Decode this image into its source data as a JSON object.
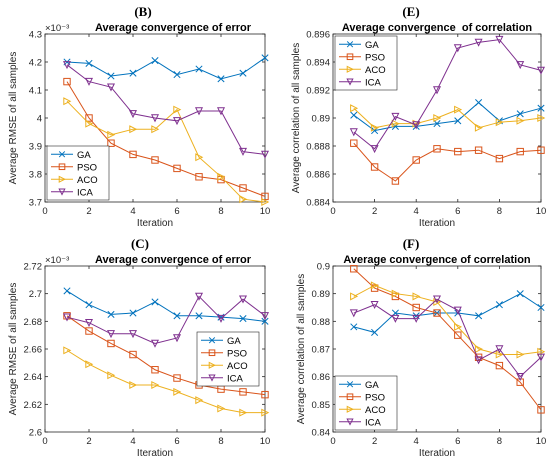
{
  "panel_letters": [
    "(B)",
    "(E)",
    "(C)",
    "(F)"
  ],
  "chart_data": [
    {
      "type": "line",
      "panel": "(B)",
      "title": "Average convergence of error",
      "xlabel": "Iteration",
      "ylabel": "Average RMSE of all samples",
      "exponent_label": "×10⁻³",
      "x": [
        1,
        2,
        3,
        4,
        5,
        6,
        7,
        8,
        9,
        10
      ],
      "xlim": [
        0,
        10
      ],
      "ylim": [
        3.7,
        4.3
      ],
      "xticks": [
        0,
        2,
        4,
        6,
        8,
        10
      ],
      "yticks": [
        3.7,
        3.8,
        3.9,
        4.0,
        4.1,
        4.2,
        4.3
      ],
      "ytick_labels": [
        "3.7",
        "3.8",
        "3.9",
        "4",
        "4.1",
        "4.2",
        "4.3"
      ],
      "legend_position": "bottom-left",
      "series": [
        {
          "name": "GA",
          "color": "#0072BD",
          "marker": "x",
          "values": [
            4.2,
            4.195,
            4.15,
            4.16,
            4.205,
            4.155,
            4.175,
            4.14,
            4.16,
            4.215
          ]
        },
        {
          "name": "PSO",
          "color": "#D95319",
          "marker": "square",
          "values": [
            4.13,
            4.0,
            3.91,
            3.87,
            3.85,
            3.82,
            3.79,
            3.78,
            3.75,
            3.72
          ]
        },
        {
          "name": "ACO",
          "color": "#EDB120",
          "marker": "triangle-right",
          "values": [
            4.06,
            3.98,
            3.94,
            3.96,
            3.96,
            4.03,
            3.86,
            3.79,
            3.71,
            3.7
          ]
        },
        {
          "name": "ICA",
          "color": "#7E2F8E",
          "marker": "triangle-down",
          "values": [
            4.19,
            4.13,
            4.11,
            4.015,
            4.0,
            3.99,
            4.025,
            4.025,
            3.88,
            3.87
          ]
        }
      ]
    },
    {
      "type": "line",
      "panel": "(E)",
      "title": "Average convergence  of correlation",
      "xlabel": "Iteration",
      "ylabel": "Average correlation of all samples",
      "x": [
        1,
        2,
        3,
        4,
        5,
        6,
        7,
        8,
        9,
        10
      ],
      "xlim": [
        0,
        10
      ],
      "ylim": [
        0.884,
        0.896
      ],
      "xticks": [
        0,
        2,
        4,
        6,
        8,
        10
      ],
      "yticks": [
        0.884,
        0.886,
        0.888,
        0.89,
        0.892,
        0.894,
        0.896
      ],
      "ytick_labels": [
        "0.884",
        "0.886",
        "0.888",
        "0.89",
        "0.892",
        "0.894",
        "0.896"
      ],
      "legend_position": "top-left",
      "series": [
        {
          "name": "GA",
          "color": "#0072BD",
          "marker": "x",
          "values": [
            0.8902,
            0.8891,
            0.8894,
            0.8894,
            0.8896,
            0.8898,
            0.8911,
            0.8898,
            0.8903,
            0.8907
          ]
        },
        {
          "name": "PSO",
          "color": "#D95319",
          "marker": "square",
          "values": [
            0.8882,
            0.8865,
            0.8855,
            0.887,
            0.8878,
            0.8876,
            0.8877,
            0.8871,
            0.8876,
            0.8877
          ]
        },
        {
          "name": "ACO",
          "color": "#EDB120",
          "marker": "triangle-right",
          "values": [
            0.8907,
            0.8893,
            0.8896,
            0.8896,
            0.89,
            0.8906,
            0.8893,
            0.8897,
            0.8898,
            0.89
          ]
        },
        {
          "name": "ICA",
          "color": "#7E2F8E",
          "marker": "triangle-down",
          "values": [
            0.889,
            0.8878,
            0.8901,
            0.8895,
            0.892,
            0.895,
            0.8954,
            0.8956,
            0.8938,
            0.8934
          ]
        }
      ]
    },
    {
      "type": "line",
      "panel": "(C)",
      "title": "Average convergence of error",
      "xlabel": "Iteration",
      "ylabel": "Average RMSE of all samples",
      "exponent_label": "×10⁻³",
      "x": [
        1,
        2,
        3,
        4,
        5,
        6,
        7,
        8,
        9,
        10
      ],
      "xlim": [
        0,
        10
      ],
      "ylim": [
        2.6,
        2.72
      ],
      "xticks": [
        0,
        2,
        4,
        6,
        8,
        10
      ],
      "yticks": [
        2.6,
        2.62,
        2.64,
        2.66,
        2.68,
        2.7,
        2.72
      ],
      "ytick_labels": [
        "2.6",
        "2.62",
        "2.64",
        "2.66",
        "2.68",
        "2.7",
        "2.72"
      ],
      "legend_position": "right",
      "series": [
        {
          "name": "GA",
          "color": "#0072BD",
          "marker": "x",
          "values": [
            2.702,
            2.692,
            2.685,
            2.686,
            2.694,
            2.684,
            2.684,
            2.683,
            2.682,
            2.68
          ]
        },
        {
          "name": "PSO",
          "color": "#D95319",
          "marker": "square",
          "values": [
            2.684,
            2.673,
            2.664,
            2.656,
            2.645,
            2.639,
            2.634,
            2.631,
            2.629,
            2.627
          ]
        },
        {
          "name": "ACO",
          "color": "#EDB120",
          "marker": "triangle-right",
          "values": [
            2.659,
            2.649,
            2.641,
            2.634,
            2.634,
            2.629,
            2.623,
            2.617,
            2.614,
            2.614
          ]
        },
        {
          "name": "ICA",
          "color": "#7E2F8E",
          "marker": "triangle-down",
          "values": [
            2.683,
            2.679,
            2.671,
            2.671,
            2.664,
            2.668,
            2.698,
            2.682,
            2.696,
            2.684
          ]
        }
      ]
    },
    {
      "type": "line",
      "panel": "(F)",
      "title": "Average convergence of correlation",
      "xlabel": "Iteration",
      "ylabel": "Average correlation of all samples",
      "x": [
        1,
        2,
        3,
        4,
        5,
        6,
        7,
        8,
        9,
        10
      ],
      "xlim": [
        0,
        10
      ],
      "ylim": [
        0.84,
        0.9
      ],
      "xticks": [
        0,
        2,
        4,
        6,
        8,
        10
      ],
      "yticks": [
        0.84,
        0.85,
        0.86,
        0.87,
        0.88,
        0.89,
        0.9
      ],
      "ytick_labels": [
        "0.84",
        "0.85",
        "0.86",
        "0.87",
        "0.88",
        "0.89",
        "0.9"
      ],
      "legend_position": "bottom-left",
      "series": [
        {
          "name": "GA",
          "color": "#0072BD",
          "marker": "x",
          "values": [
            0.878,
            0.876,
            0.883,
            0.882,
            0.883,
            0.883,
            0.882,
            0.886,
            0.89,
            0.885
          ]
        },
        {
          "name": "PSO",
          "color": "#D95319",
          "marker": "square",
          "values": [
            0.899,
            0.892,
            0.889,
            0.885,
            0.883,
            0.875,
            0.867,
            0.864,
            0.858,
            0.848
          ]
        },
        {
          "name": "ACO",
          "color": "#EDB120",
          "marker": "triangle-right",
          "values": [
            0.889,
            0.893,
            0.89,
            0.889,
            0.887,
            0.878,
            0.87,
            0.868,
            0.868,
            0.869
          ]
        },
        {
          "name": "ICA",
          "color": "#7E2F8E",
          "marker": "triangle-down",
          "values": [
            0.883,
            0.886,
            0.881,
            0.881,
            0.888,
            0.884,
            0.866,
            0.87,
            0.86,
            0.867
          ]
        }
      ]
    }
  ]
}
